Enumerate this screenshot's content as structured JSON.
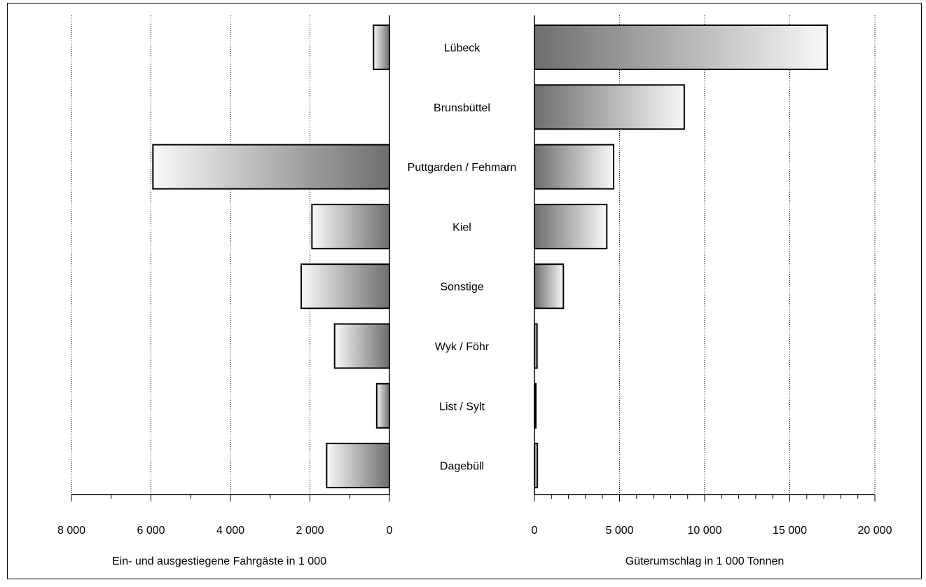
{
  "chart_data": [
    {
      "type": "bar",
      "orientation": "horizontal",
      "direction": "leftward",
      "categories": [
        "Lübeck",
        "Brunsbüttel",
        "Puttgarden / Fehmarn",
        "Kiel",
        "Sonstige",
        "Wyk / Föhr",
        "List / Sylt",
        "Dagebüll"
      ],
      "values": [
        400,
        0,
        5950,
        1950,
        2220,
        1380,
        320,
        1580
      ],
      "xlabel": "Ein- und ausgestiegene Fahrgäste in 1 000",
      "xlim": [
        0,
        8000
      ],
      "ticks": [
        0,
        2000,
        4000,
        6000,
        8000
      ],
      "tick_labels": [
        "0",
        "2 000",
        "4 000",
        "6 000",
        "8 000"
      ],
      "grid": "vertical dotted"
    },
    {
      "type": "bar",
      "orientation": "horizontal",
      "direction": "rightward",
      "categories": [
        "Lübeck",
        "Brunsbüttel",
        "Puttgarden / Fehmarn",
        "Kiel",
        "Sonstige",
        "Wyk / Föhr",
        "List / Sylt",
        "Dagebüll"
      ],
      "values": [
        17200,
        8800,
        4650,
        4250,
        1700,
        150,
        80,
        170
      ],
      "xlabel": "Güterumschlag in 1 000 Tonnen",
      "xlim": [
        0,
        20000
      ],
      "ticks": [
        0,
        5000,
        10000,
        15000,
        20000
      ],
      "tick_labels": [
        "0",
        "5 000",
        "10 000",
        "15 000",
        "20 000"
      ],
      "grid": "vertical dotted"
    }
  ],
  "colors": {
    "bar_dark": "#6e6e6e",
    "bar_light": "#f8f8f8",
    "frame": "#000000"
  }
}
